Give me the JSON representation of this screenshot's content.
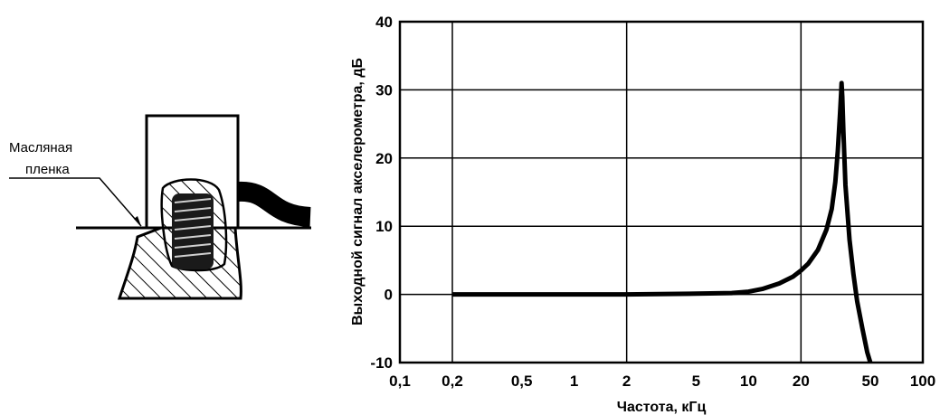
{
  "diagram": {
    "callout_line1": "Масляная",
    "callout_line2": "пленка"
  },
  "chart_data": {
    "type": "line",
    "x_scale": "log",
    "xlabel": "Частота, кГц",
    "ylabel": "Выходной сигнал акселерометра, дБ",
    "xlim": [
      0.1,
      100
    ],
    "ylim": [
      -10,
      40
    ],
    "grid": true,
    "x_ticks": [
      {
        "v": 0.1,
        "label": "0,1"
      },
      {
        "v": 0.2,
        "label": "0,2"
      },
      {
        "v": 0.5,
        "label": "0,5"
      },
      {
        "v": 1,
        "label": "1"
      },
      {
        "v": 2,
        "label": "2"
      },
      {
        "v": 5,
        "label": "5"
      },
      {
        "v": 10,
        "label": "10"
      },
      {
        "v": 20,
        "label": "20"
      },
      {
        "v": 50,
        "label": "50"
      },
      {
        "v": 100,
        "label": "100"
      }
    ],
    "x_grid": [
      0.2,
      2,
      20
    ],
    "y_ticks": [
      {
        "v": -10,
        "label": "-10"
      },
      {
        "v": 0,
        "label": "0"
      },
      {
        "v": 10,
        "label": "10"
      },
      {
        "v": 20,
        "label": "20"
      },
      {
        "v": 30,
        "label": "30"
      },
      {
        "v": 40,
        "label": "40"
      }
    ],
    "series": [
      {
        "x": [
          0.2,
          0.5,
          1,
          2,
          5,
          8,
          10,
          12,
          15,
          18,
          20,
          22,
          25,
          28,
          30,
          31.5,
          32.5,
          33.5,
          34,
          34.2,
          34.5,
          35,
          36,
          38,
          40,
          42,
          45,
          48,
          50
        ],
        "values": [
          0,
          0,
          0,
          0,
          0.1,
          0.2,
          0.4,
          0.8,
          1.6,
          2.6,
          3.5,
          4.5,
          6.5,
          9.5,
          12.5,
          16.5,
          21,
          26.5,
          29.5,
          31,
          29,
          24,
          16,
          8,
          3,
          -1,
          -5,
          -8.5,
          -10
        ]
      }
    ]
  }
}
